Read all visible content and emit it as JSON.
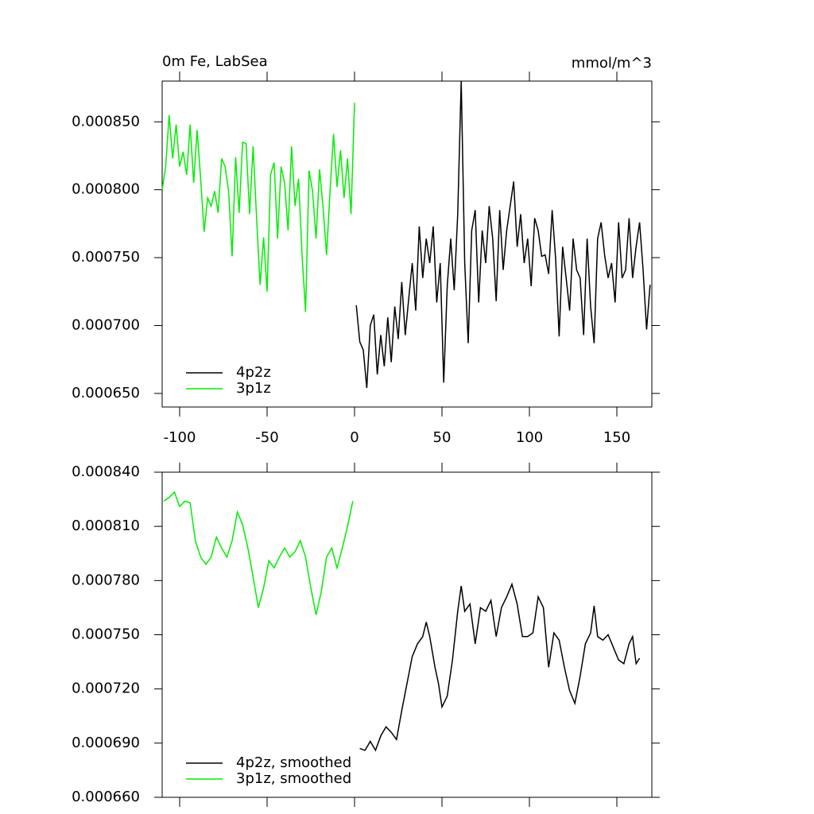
{
  "chart_data": [
    {
      "type": "line",
      "title": "0m Fe, LabSea",
      "units_label": "mmol/m^3",
      "xlim": [
        -110,
        170
      ],
      "xticks": [
        -100,
        -50,
        0,
        50,
        100,
        150
      ],
      "ylim": [
        0.00064,
        0.00088
      ],
      "yticks": [
        {
          "value": 0.00065,
          "label": "0.000650"
        },
        {
          "value": 0.0007,
          "label": "0.000700"
        },
        {
          "value": 0.00075,
          "label": "0.000750"
        },
        {
          "value": 0.0008,
          "label": "0.000800"
        },
        {
          "value": 0.00085,
          "label": "0.000850"
        }
      ],
      "legend": "lower left",
      "series": [
        {
          "name": "4p2z",
          "color": "#000000",
          "x": [
            1,
            3,
            5,
            7,
            9,
            11,
            13,
            15,
            17,
            19,
            21,
            23,
            25,
            27,
            29,
            31,
            33,
            35,
            37,
            39,
            41,
            43,
            45,
            47,
            49,
            51,
            53,
            55,
            57,
            59,
            61,
            63,
            65,
            67,
            69,
            71,
            73,
            75,
            77,
            79,
            81,
            83,
            85,
            87,
            89,
            91,
            93,
            95,
            97,
            99,
            101,
            103,
            105,
            107,
            109,
            111,
            113,
            115,
            117,
            119,
            121,
            123,
            125,
            127,
            129,
            131,
            133,
            135,
            137,
            139,
            141,
            143,
            145,
            147,
            149,
            151,
            153,
            155,
            157,
            159,
            161,
            163,
            165,
            167,
            169
          ],
          "values": [
            0.000715,
            0.000688,
            0.000682,
            0.000654,
            0.0007,
            0.000708,
            0.000664,
            0.000693,
            0.00067,
            0.000706,
            0.000673,
            0.000714,
            0.00069,
            0.000732,
            0.000693,
            0.00072,
            0.000746,
            0.000711,
            0.000773,
            0.000735,
            0.000764,
            0.000746,
            0.000773,
            0.000717,
            0.000746,
            0.000658,
            0.000729,
            0.000764,
            0.000726,
            0.000782,
            0.00088,
            0.000746,
            0.000687,
            0.00077,
            0.000785,
            0.000717,
            0.00077,
            0.000746,
            0.000788,
            0.000764,
            0.000718,
            0.000785,
            0.000741,
            0.00077,
            0.000788,
            0.000806,
            0.000758,
            0.000782,
            0.000746,
            0.000764,
            0.000729,
            0.000779,
            0.00077,
            0.000751,
            0.000752,
            0.000738,
            0.000785,
            0.000749,
            0.000692,
            0.000758,
            0.000735,
            0.000711,
            0.000764,
            0.000741,
            0.000735,
            0.000693,
            0.000764,
            0.000714,
            0.000687,
            0.000764,
            0.000776,
            0.000752,
            0.000735,
            0.000746,
            0.000717,
            0.000776,
            0.000735,
            0.000741,
            0.000779,
            0.000735,
            0.000758,
            0.000776,
            0.000741,
            0.000697,
            0.00073
          ]
        },
        {
          "name": "3p1z",
          "color": "#00ee00",
          "x": [
            -110,
            -108,
            -106,
            -104,
            -102,
            -100,
            -98,
            -96,
            -94,
            -92,
            -90,
            -88,
            -86,
            -84,
            -82,
            -80,
            -78,
            -76,
            -74,
            -72,
            -70,
            -68,
            -66,
            -64,
            -62,
            -60,
            -58,
            -56,
            -54,
            -52,
            -50,
            -48,
            -46,
            -44,
            -42,
            -40,
            -38,
            -36,
            -34,
            -32,
            -30,
            -28,
            -26,
            -24,
            -22,
            -20,
            -18,
            -16,
            -14,
            -12,
            -10,
            -8,
            -6,
            -4,
            -2,
            0
          ],
          "values": [
            0.0008,
            0.000817,
            0.000855,
            0.000823,
            0.000848,
            0.000817,
            0.000828,
            0.000811,
            0.000848,
            0.000805,
            0.000844,
            0.000808,
            0.000769,
            0.000794,
            0.000788,
            0.000799,
            0.000783,
            0.000823,
            0.000817,
            0.000799,
            0.000751,
            0.000824,
            0.000783,
            0.000835,
            0.000834,
            0.000782,
            0.000832,
            0.000779,
            0.00073,
            0.000765,
            0.000725,
            0.000811,
            0.00082,
            0.000764,
            0.000817,
            0.000805,
            0.00077,
            0.000832,
            0.000788,
            0.000808,
            0.000752,
            0.00071,
            0.000814,
            0.000799,
            0.000764,
            0.000815,
            0.000787,
            0.000752,
            0.000799,
            0.000841,
            0.000802,
            0.000829,
            0.000794,
            0.000823,
            0.000782,
            0.000864
          ]
        }
      ]
    },
    {
      "type": "line",
      "xlim": [
        -110,
        170
      ],
      "xticks": [
        -100,
        -50,
        0,
        50,
        100,
        150
      ],
      "ylim": [
        0.00066,
        0.00084
      ],
      "yticks": [
        {
          "value": 0.00066,
          "label": "0.000660"
        },
        {
          "value": 0.00069,
          "label": "0.000690"
        },
        {
          "value": 0.00072,
          "label": "0.000720"
        },
        {
          "value": 0.00075,
          "label": "0.000750"
        },
        {
          "value": 0.00078,
          "label": "0.000780"
        },
        {
          "value": 0.00081,
          "label": "0.000810"
        },
        {
          "value": 0.00084,
          "label": "0.000840"
        }
      ],
      "legend": "lower left",
      "series": [
        {
          "name": "4p2z, smoothed",
          "color": "#000000",
          "x": [
            3,
            6,
            9,
            12,
            15,
            18,
            21,
            24,
            27,
            30,
            33,
            36,
            39,
            41,
            43,
            46,
            48,
            50,
            53,
            56,
            59,
            61,
            63,
            66,
            69,
            72,
            75,
            78,
            81,
            84,
            87,
            90,
            93,
            96,
            99,
            102,
            105,
            108,
            111,
            114,
            117,
            120,
            123,
            126,
            129,
            132,
            135,
            137,
            139,
            142,
            145,
            148,
            151,
            154,
            157,
            159,
            161,
            163
          ],
          "values": [
            0.000687,
            0.000686,
            0.000691,
            0.000686,
            0.000694,
            0.000699,
            0.000696,
            0.000692,
            0.000708,
            0.000723,
            0.000738,
            0.000745,
            0.000749,
            0.000757,
            0.000749,
            0.000732,
            0.000723,
            0.00071,
            0.000716,
            0.000736,
            0.000763,
            0.000777,
            0.000763,
            0.000767,
            0.000745,
            0.000765,
            0.000763,
            0.000769,
            0.000749,
            0.000765,
            0.000771,
            0.000778,
            0.000767,
            0.000749,
            0.000749,
            0.000751,
            0.000771,
            0.000765,
            0.000732,
            0.000751,
            0.000747,
            0.000732,
            0.000719,
            0.000712,
            0.000727,
            0.000745,
            0.000751,
            0.000766,
            0.000749,
            0.000747,
            0.00075,
            0.000743,
            0.000736,
            0.000734,
            0.000745,
            0.000749,
            0.000734,
            0.000737
          ]
        },
        {
          "name": "3p1z, smoothed",
          "color": "#00ee00",
          "x": [
            -109,
            -106,
            -103,
            -100,
            -97,
            -94,
            -91,
            -88,
            -85,
            -82,
            -79,
            -76,
            -73,
            -70,
            -67,
            -64,
            -61,
            -58,
            -55,
            -52,
            -49,
            -46,
            -43,
            -40,
            -37,
            -34,
            -31,
            -28,
            -25,
            -22,
            -19,
            -16,
            -13,
            -10,
            -7,
            -4,
            -1
          ],
          "values": [
            0.000824,
            0.000826,
            0.000829,
            0.000821,
            0.000824,
            0.000823,
            0.000802,
            0.000793,
            0.000789,
            0.000793,
            0.000804,
            0.000798,
            0.000793,
            0.000802,
            0.000818,
            0.000811,
            0.000798,
            0.000782,
            0.000765,
            0.000776,
            0.000791,
            0.000787,
            0.000793,
            0.000798,
            0.000793,
            0.000796,
            0.000802,
            0.000793,
            0.000776,
            0.000761,
            0.000774,
            0.000793,
            0.000798,
            0.000787,
            0.000798,
            0.00081,
            0.000824
          ]
        }
      ]
    }
  ]
}
